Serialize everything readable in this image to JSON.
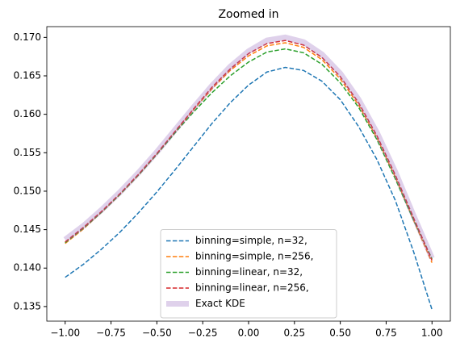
{
  "chart_data": {
    "type": "line",
    "title": "Zoomed in",
    "x": [
      -1,
      -0.9,
      -0.8,
      -0.7,
      -0.6,
      -0.5,
      -0.4,
      -0.3,
      -0.2,
      -0.1,
      0,
      0.1,
      0.2,
      0.3,
      0.4,
      0.5,
      0.6,
      0.7,
      0.8,
      0.9,
      1
    ],
    "series": [
      {
        "name": "binning=simple, n=32,",
        "color": "#1f77b4",
        "dashed": true,
        "linewidth": 1.5,
        "alpha": 1,
        "values": [
          0.1388,
          0.1405,
          0.1425,
          0.1447,
          0.1472,
          0.1499,
          0.1528,
          0.1558,
          0.1588,
          0.1615,
          0.1638,
          0.1655,
          0.1661,
          0.1657,
          0.1643,
          0.1619,
          0.1584,
          0.1541,
          0.1488,
          0.1421,
          0.1346
        ]
      },
      {
        "name": "binning=simple, n=256,",
        "color": "#ff7f0e",
        "dashed": true,
        "linewidth": 1.5,
        "alpha": 1,
        "values": [
          0.1432,
          0.1451,
          0.1473,
          0.1496,
          0.1521,
          0.1548,
          0.1577,
          0.1606,
          0.1633,
          0.1657,
          0.1676,
          0.1689,
          0.1693,
          0.1687,
          0.1671,
          0.1646,
          0.1612,
          0.1569,
          0.1518,
          0.1462,
          0.1407
        ]
      },
      {
        "name": "binning=linear, n=32,",
        "color": "#2ca02c",
        "dashed": true,
        "linewidth": 1.5,
        "alpha": 1,
        "values": [
          0.1433,
          0.1452,
          0.1473,
          0.1496,
          0.1521,
          0.1548,
          0.1576,
          0.1603,
          0.1628,
          0.165,
          0.1668,
          0.1681,
          0.1685,
          0.168,
          0.1665,
          0.1641,
          0.1609,
          0.1567,
          0.1516,
          0.1462,
          0.1412
        ]
      },
      {
        "name": "binning=linear, n=256,",
        "color": "#d62728",
        "dashed": true,
        "linewidth": 1.5,
        "alpha": 1,
        "values": [
          0.1434,
          0.1453,
          0.1474,
          0.1497,
          0.1522,
          0.1549,
          0.1578,
          0.1607,
          0.1635,
          0.1659,
          0.1679,
          0.1692,
          0.1696,
          0.169,
          0.1674,
          0.1649,
          0.1615,
          0.1572,
          0.1521,
          0.1465,
          0.141
        ]
      },
      {
        "name": "Exact KDE",
        "color": "#9467bd",
        "dashed": false,
        "linewidth": 7,
        "alpha": 0.3,
        "values": [
          0.1437,
          0.1455,
          0.1476,
          0.1499,
          0.1524,
          0.1551,
          0.158,
          0.1609,
          0.1637,
          0.1662,
          0.1682,
          0.1696,
          0.17,
          0.1694,
          0.1678,
          0.1653,
          0.1619,
          0.1576,
          0.1525,
          0.1468,
          0.1413
        ]
      }
    ],
    "xlim": [
      -1.1,
      1.1
    ],
    "ylim": [
      0.1331,
      0.1714
    ],
    "xticks": [
      {
        "value": -1,
        "label": "−1.00"
      },
      {
        "value": -0.75,
        "label": "−0.75"
      },
      {
        "value": -0.5,
        "label": "−0.50"
      },
      {
        "value": -0.25,
        "label": "−0.25"
      },
      {
        "value": 0,
        "label": "0.00"
      },
      {
        "value": 0.25,
        "label": "0.25"
      },
      {
        "value": 0.5,
        "label": "0.50"
      },
      {
        "value": 0.75,
        "label": "0.75"
      },
      {
        "value": 1,
        "label": "1.00"
      }
    ],
    "yticks": [
      0.135,
      {
        "value": 0.14,
        "label": "0.140"
      },
      0.145,
      {
        "value": 0.15,
        "label": "0.150"
      },
      0.155,
      {
        "value": 0.16,
        "label": "0.160"
      },
      0.165,
      {
        "value": 0.17,
        "label": "0.170"
      }
    ],
    "grid": false,
    "legend": "lower center"
  }
}
